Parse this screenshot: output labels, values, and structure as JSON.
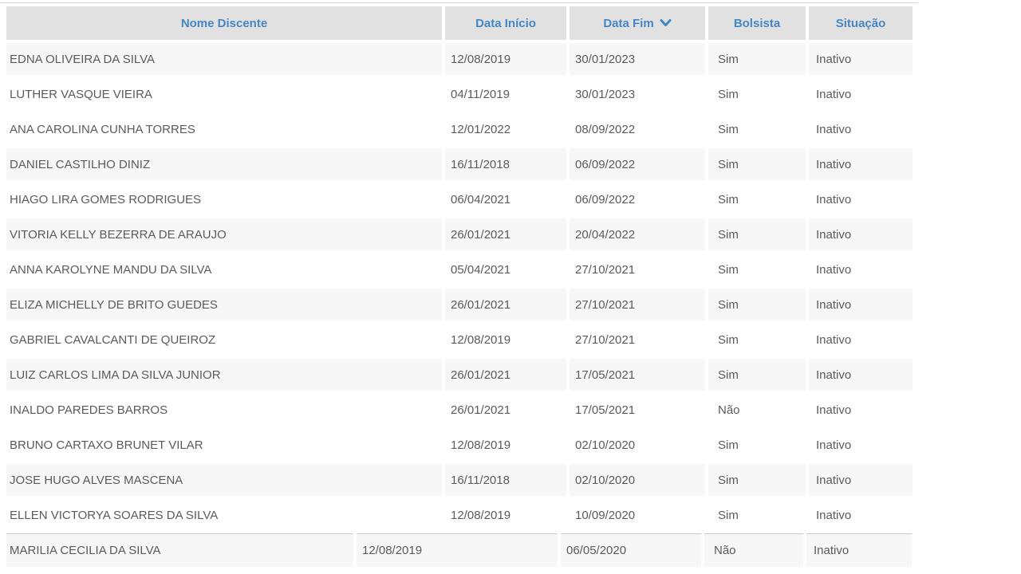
{
  "colors": {
    "header_bg": "#e2e1e1",
    "header_text": "#4687c3",
    "shaded_row_bg": "#f8f7f7",
    "body_text": "#5a5a60",
    "top_border": "#d6d5d5",
    "last_row_border": "#c9c8c8"
  },
  "table": {
    "columns": [
      {
        "id": "name",
        "label": "Nome Discente"
      },
      {
        "id": "start_date",
        "label": "Data Início"
      },
      {
        "id": "end_date",
        "label": "Data Fim",
        "sorted": "desc",
        "sort_icon": "chevron-down-icon"
      },
      {
        "id": "scholarship",
        "label": "Bolsista"
      },
      {
        "id": "status",
        "label": "Situação"
      }
    ],
    "rows": [
      {
        "name": "EDNA OLIVEIRA DA SILVA",
        "start_date": "12/08/2019",
        "end_date": "30/01/2023",
        "scholarship": "Sim",
        "status": "Inativo",
        "shaded": true
      },
      {
        "name": "LUTHER VASQUE VIEIRA",
        "start_date": "04/11/2019",
        "end_date": "30/01/2023",
        "scholarship": "Sim",
        "status": "Inativo",
        "shaded": false
      },
      {
        "name": "ANA CAROLINA CUNHA TORRES",
        "start_date": "12/01/2022",
        "end_date": "08/09/2022",
        "scholarship": "Sim",
        "status": "Inativo",
        "shaded": false
      },
      {
        "name": "DANIEL CASTILHO DINIZ",
        "start_date": "16/11/2018",
        "end_date": "06/09/2022",
        "scholarship": "Sim",
        "status": "Inativo",
        "shaded": true
      },
      {
        "name": "HIAGO LIRA GOMES RODRIGUES",
        "start_date": "06/04/2021",
        "end_date": "06/09/2022",
        "scholarship": "Sim",
        "status": "Inativo",
        "shaded": false
      },
      {
        "name": "VITORIA KELLY BEZERRA DE ARAUJO",
        "start_date": "26/01/2021",
        "end_date": "20/04/2022",
        "scholarship": "Sim",
        "status": "Inativo",
        "shaded": true
      },
      {
        "name": "ANNA KAROLYNE MANDU DA SILVA",
        "start_date": "05/04/2021",
        "end_date": "27/10/2021",
        "scholarship": "Sim",
        "status": "Inativo",
        "shaded": false
      },
      {
        "name": "ELIZA MICHELLY DE BRITO GUEDES",
        "start_date": "26/01/2021",
        "end_date": "27/10/2021",
        "scholarship": "Sim",
        "status": "Inativo",
        "shaded": true
      },
      {
        "name": "GABRIEL CAVALCANTI DE QUEIROZ",
        "start_date": "12/08/2019",
        "end_date": "27/10/2021",
        "scholarship": "Sim",
        "status": "Inativo",
        "shaded": false
      },
      {
        "name": "LUIZ CARLOS LIMA DA SILVA JUNIOR",
        "start_date": "26/01/2021",
        "end_date": "17/05/2021",
        "scholarship": "Sim",
        "status": "Inativo",
        "shaded": true
      },
      {
        "name": "INALDO PAREDES BARROS",
        "start_date": "26/01/2021",
        "end_date": "17/05/2021",
        "scholarship": "Não",
        "status": "Inativo",
        "shaded": false
      },
      {
        "name": "BRUNO CARTAXO BRUNET VILAR",
        "start_date": "12/08/2019",
        "end_date": "02/10/2020",
        "scholarship": "Sim",
        "status": "Inativo",
        "shaded": false
      },
      {
        "name": "JOSE HUGO ALVES MASCENA",
        "start_date": "16/11/2018",
        "end_date": "02/10/2020",
        "scholarship": "Sim",
        "status": "Inativo",
        "shaded": true
      },
      {
        "name": "ELLEN VICTORYA SOARES DA SILVA",
        "start_date": "12/08/2019",
        "end_date": "10/09/2020",
        "scholarship": "Sim",
        "status": "Inativo",
        "shaded": false
      },
      {
        "name": "MARILIA CECILIA DA SILVA",
        "start_date": "12/08/2019",
        "end_date": "06/05/2020",
        "scholarship": "Não",
        "status": "Inativo",
        "shaded": true
      }
    ]
  }
}
